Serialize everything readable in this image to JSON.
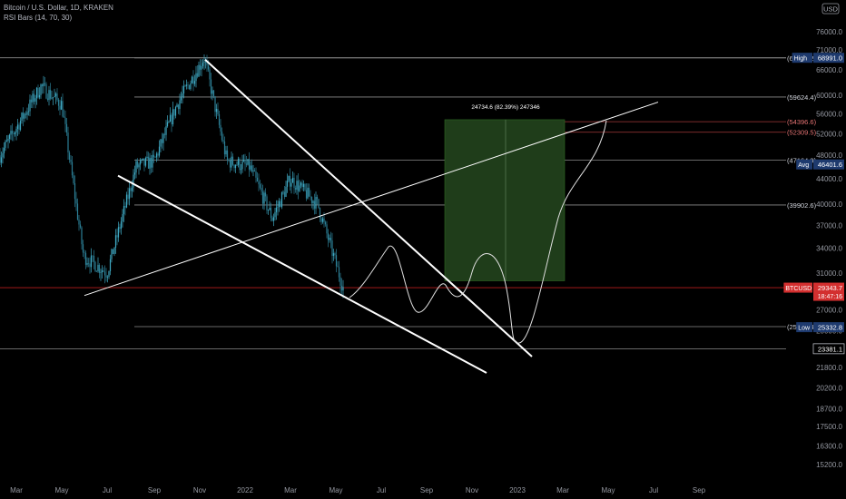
{
  "header": {
    "symbol_title": "Bitcoin / U.S. Dollar, 1D, KRAKEN",
    "indicator": "RSI Bars (14, 70, 30)"
  },
  "currency_badge": "USD",
  "colors": {
    "background": "#000000",
    "up": "#26a69a",
    "down": "#ef5350",
    "candle": "#4fb8d0",
    "line_white": "#ffffff",
    "level_gray": "#8a8a8a",
    "level_red": "#a33a3a",
    "badge_blue": "#1e3a6e",
    "badge_red": "#d32f2f",
    "target_box": "#1f3d1a"
  },
  "chart_data": {
    "type": "candlestick",
    "y_axis": {
      "scale": "log",
      "ticks": [
        15200,
        16300,
        17500,
        18700,
        20200,
        21800,
        25000,
        27000,
        31000,
        34000,
        37000,
        40000,
        44000,
        48000,
        52000,
        56000,
        60000,
        66000,
        71000,
        76000
      ]
    },
    "x_axis": {
      "ticks": [
        "Mar",
        "May",
        "Jul",
        "Sep",
        "Nov",
        "2022",
        "Mar",
        "May",
        "Jul",
        "Sep",
        "Nov",
        "2023",
        "Mar",
        "May",
        "Jul",
        "Sep"
      ]
    },
    "price_path": [
      {
        "x": "Mar",
        "y": 48000
      },
      {
        "x": "Apr",
        "y": 62000
      },
      {
        "x": "May",
        "y": 58000
      },
      {
        "x": "Jun",
        "y": 33000
      },
      {
        "x": "Jul",
        "y": 31000
      },
      {
        "x": "Aug",
        "y": 46000
      },
      {
        "x": "Sep",
        "y": 47000
      },
      {
        "x": "Oct",
        "y": 58000
      },
      {
        "x": "Nov",
        "y": 68991
      },
      {
        "x": "Dec",
        "y": 47000
      },
      {
        "x": "2022",
        "y": 46000
      },
      {
        "x": "Feb",
        "y": 38000
      },
      {
        "x": "Mar",
        "y": 44000
      },
      {
        "x": "Apr",
        "y": 40000
      },
      {
        "x": "May",
        "y": 29343.7
      }
    ],
    "levels": [
      {
        "label": "(68957.2)",
        "price": 68957.2,
        "style": "gray"
      },
      {
        "label": "(59624.4)",
        "price": 59624.4,
        "style": "gray"
      },
      {
        "label": "(54396.6)",
        "price": 54396.6,
        "style": "red"
      },
      {
        "label": "(52309.5)",
        "price": 52309.5,
        "style": "red"
      },
      {
        "label": "(47164.9)",
        "price": 47164.9,
        "style": "gray"
      },
      {
        "label": "(39902.6)",
        "price": 39902.6,
        "style": "gray"
      },
      {
        "label": "(25383.4)",
        "price": 25383.4,
        "style": "gray"
      }
    ],
    "badges": [
      {
        "tag": "High",
        "value": "68991.0",
        "price": 68991.0
      },
      {
        "tag": "Avg",
        "value": "46401.6",
        "price": 46401.6
      },
      {
        "tag": "BTCUSD",
        "value": "29343.7",
        "sub": "18:47:16",
        "price": 29343.7
      },
      {
        "tag": "Low",
        "value": "25332.8",
        "price": 25332.8
      },
      {
        "tag": "",
        "value": "23381.1",
        "price": 23381.1
      }
    ],
    "target_box": {
      "label": "24734.6 (82.39%) 247346",
      "from_price": 30100,
      "to_price": 54800
    },
    "projection": {
      "from": "May",
      "to": "May 2023",
      "low": 23381.1
    }
  }
}
